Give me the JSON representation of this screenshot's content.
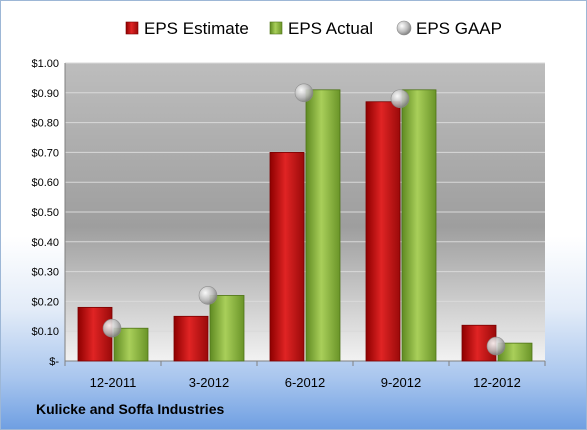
{
  "chart_data": {
    "type": "bar",
    "title": "",
    "xlabel": "",
    "ylabel": "",
    "categories": [
      "12-2011",
      "3-2012",
      "6-2012",
      "9-2012",
      "12-2012"
    ],
    "series": [
      {
        "name": "EPS Estimate",
        "type": "bar",
        "color": "#cc1111",
        "values": [
          0.18,
          0.15,
          0.7,
          0.87,
          0.12
        ]
      },
      {
        "name": "EPS Actual",
        "type": "bar",
        "color": "#8cb33a",
        "values": [
          0.11,
          0.22,
          0.91,
          0.91,
          0.06
        ]
      },
      {
        "name": "EPS GAAP",
        "type": "marker",
        "color": "#b0b0b0",
        "values": [
          0.11,
          0.22,
          0.9,
          0.88,
          0.05
        ]
      }
    ],
    "ylim": [
      0,
      1.0
    ],
    "yticks": [
      "$-",
      "$0.10",
      "$0.20",
      "$0.30",
      "$0.40",
      "$0.50",
      "$0.60",
      "$0.70",
      "$0.80",
      "$0.90",
      "$1.00"
    ],
    "ytick_values": [
      0,
      0.1,
      0.2,
      0.3,
      0.4,
      0.5,
      0.6,
      0.7,
      0.8,
      0.9,
      1.0
    ],
    "grid": true,
    "legend_position": "top"
  },
  "footer": {
    "company": "Kulicke and Soffa Industries"
  }
}
